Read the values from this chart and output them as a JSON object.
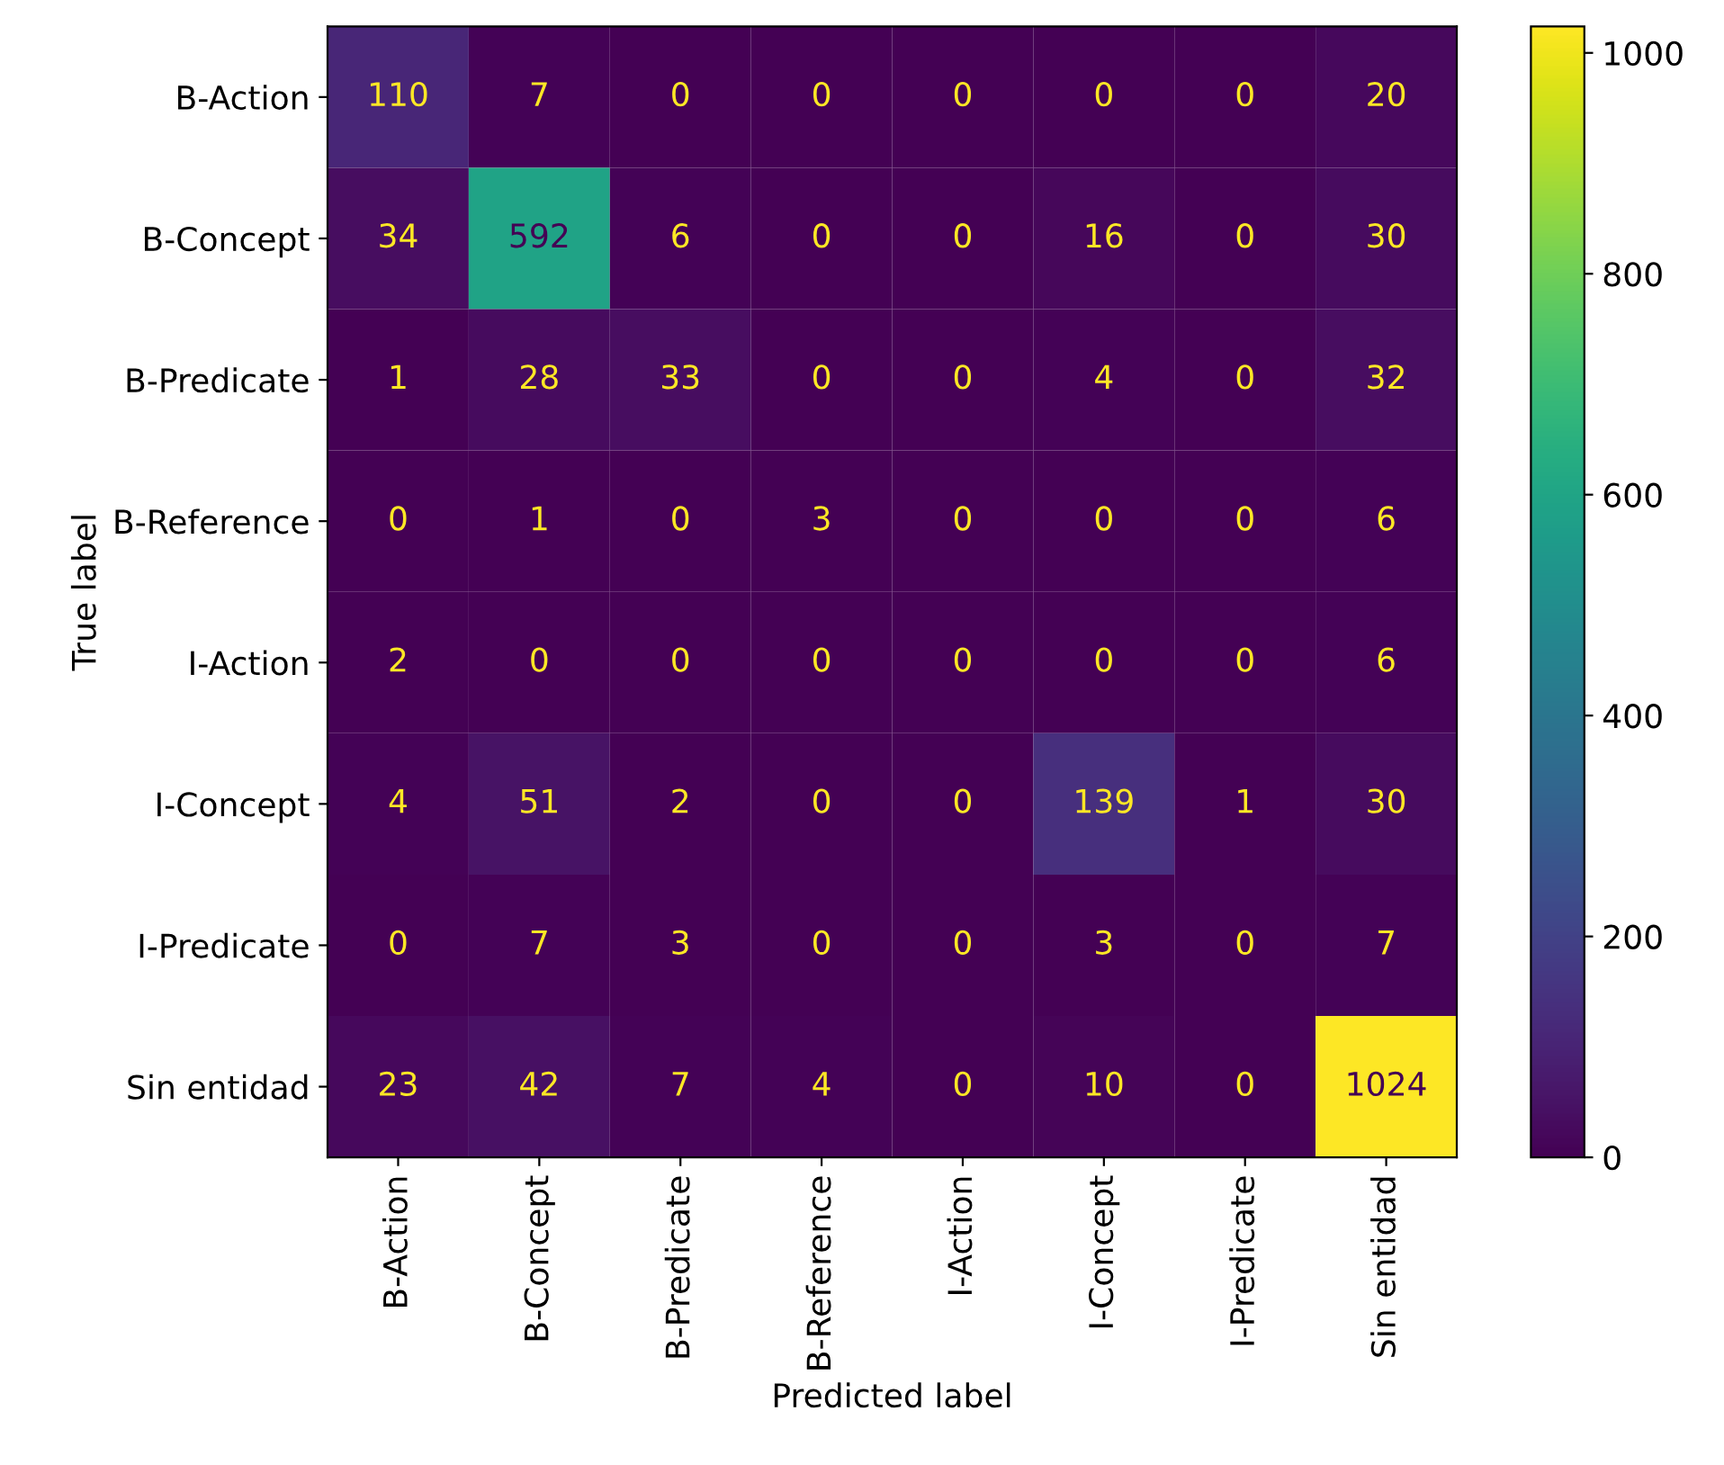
{
  "chart_data": {
    "type": "heatmap",
    "xlabel": "Predicted label",
    "ylabel": "True label",
    "categories": [
      "B-Action",
      "B-Concept",
      "B-Predicate",
      "B-Reference",
      "I-Action",
      "I-Concept",
      "I-Predicate",
      "Sin entidad"
    ],
    "y_categories": [
      "B-Action",
      "B-Concept",
      "B-Predicate",
      "B-Reference",
      "I-Action",
      "I-Concept",
      "I-Predicate",
      "Sin entidad"
    ],
    "cells": [
      [
        110,
        7,
        0,
        0,
        0,
        0,
        0,
        20
      ],
      [
        34,
        592,
        6,
        0,
        0,
        16,
        0,
        30
      ],
      [
        1,
        28,
        33,
        0,
        0,
        4,
        0,
        32
      ],
      [
        0,
        1,
        0,
        3,
        0,
        0,
        0,
        6
      ],
      [
        2,
        0,
        0,
        0,
        0,
        0,
        0,
        6
      ],
      [
        4,
        51,
        2,
        0,
        0,
        139,
        1,
        30
      ],
      [
        0,
        7,
        3,
        0,
        0,
        3,
        0,
        7
      ],
      [
        23,
        42,
        7,
        4,
        0,
        10,
        0,
        1024
      ]
    ],
    "clim": [
      0,
      1024
    ],
    "cticks": [
      0,
      200,
      400,
      600,
      800,
      1000
    ],
    "data_labels": true
  }
}
